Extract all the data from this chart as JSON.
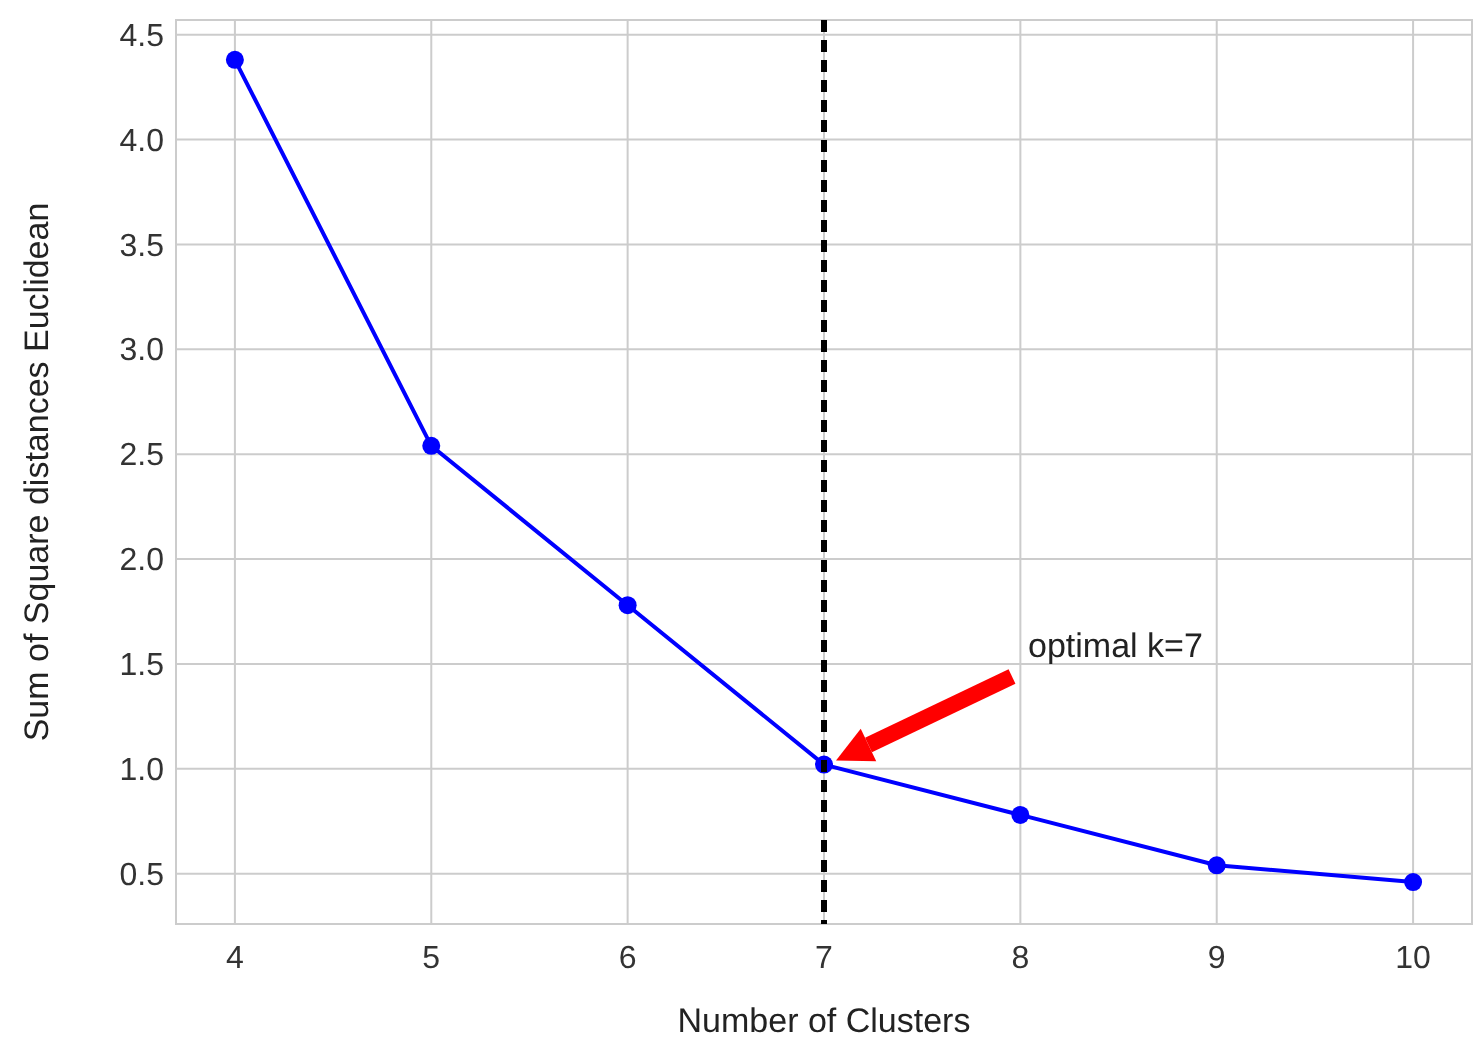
{
  "chart_data": {
    "type": "line",
    "xlabel": "Number of Clusters",
    "ylabel": "Sum of Square distances Euclidean",
    "x": [
      4,
      5,
      6,
      7,
      8,
      9,
      10
    ],
    "series": [
      {
        "color": "#0000ff",
        "values": [
          4.38,
          2.54,
          1.78,
          1.02,
          0.78,
          0.54,
          0.46
        ]
      }
    ],
    "xlim": [
      3.7,
      10.3
    ],
    "xticks": [
      4,
      5,
      6,
      7,
      8,
      9,
      10
    ],
    "ylim": [
      0.26,
      4.57
    ],
    "yticks": [
      {
        "value": 0.5,
        "label": "0.5"
      },
      {
        "value": 1,
        "label": "1.0"
      },
      {
        "value": 1.5,
        "label": "1.5"
      },
      {
        "value": 2,
        "label": "2.0"
      },
      {
        "value": 2.5,
        "label": "2.5"
      },
      {
        "value": 3,
        "label": "3.0"
      },
      {
        "value": 3.5,
        "label": "3.5"
      },
      {
        "value": 4,
        "label": "4.0"
      },
      {
        "value": 4.5,
        "label": "4.5"
      }
    ],
    "grid": true,
    "marker": "circle",
    "line_style": "solid",
    "ref_lines": [
      {
        "axis": "x",
        "value": 7,
        "color": "#000000",
        "line_style": "dashed"
      }
    ],
    "annotations": [
      "optimal k=7"
    ]
  }
}
